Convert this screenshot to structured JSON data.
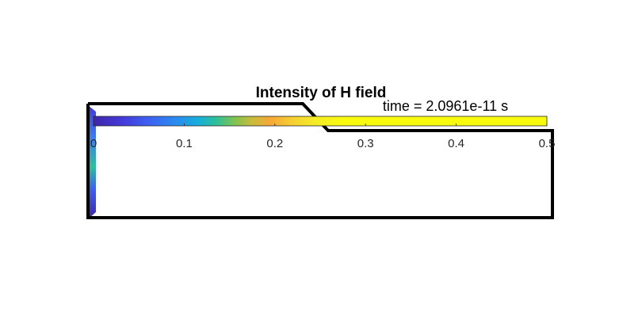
{
  "chart_data": {
    "type": "heatmap",
    "title": "Intensity of H field",
    "annotation": "time = 2.0961e-11 s",
    "colorbar": {
      "colormap": "parula",
      "range": [
        0,
        0.5
      ],
      "orientation": "horizontal",
      "ticks": [
        0,
        0.1,
        0.2,
        0.3,
        0.4,
        0.5
      ],
      "tick_labels": [
        "0",
        "0.1",
        "0.2",
        "0.3",
        "0.4",
        "0.5"
      ]
    },
    "colors": {
      "outline": "#000000",
      "parula_low": "#3e26a8",
      "parula_mid": "#26b2c6",
      "parula_orange": "#f7a836",
      "parula_high": "#f9fb0e"
    }
  }
}
